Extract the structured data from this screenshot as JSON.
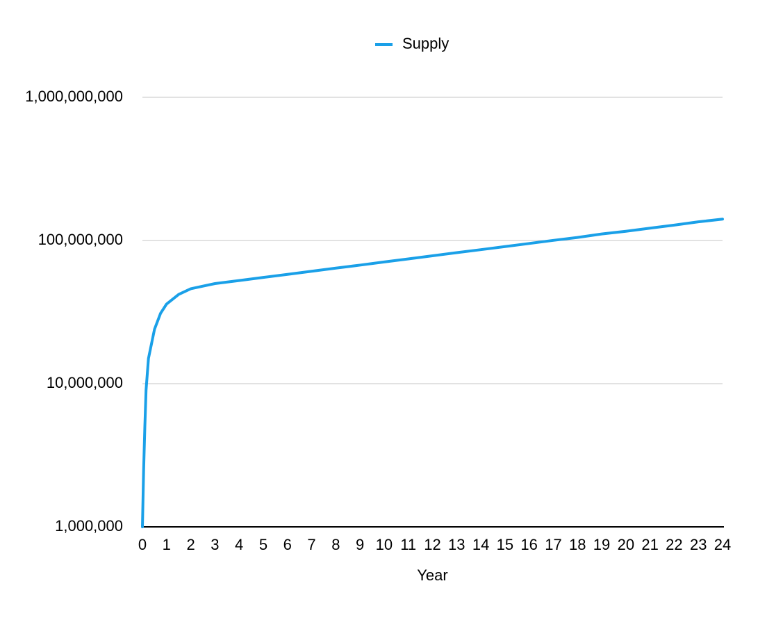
{
  "chart_data": {
    "type": "line",
    "x_label": "Year",
    "log_y": true,
    "grid": true,
    "legend": "top",
    "x": [
      0,
      0.05,
      0.1,
      0.15,
      0.25,
      0.5,
      0.75,
      1,
      1.5,
      2,
      2.5,
      3,
      4,
      5,
      6,
      7,
      8,
      9,
      10,
      11,
      12,
      13,
      14,
      15,
      16,
      17,
      18,
      19,
      20,
      21,
      22,
      23,
      24
    ],
    "series": [
      {
        "name": "Supply",
        "color": "#1aa0e8",
        "values": [
          1000000,
          2500000,
          5000000,
          9000000,
          15000000,
          24000000,
          31000000,
          36000000,
          42000000,
          46000000,
          48000000,
          50000000,
          52500000,
          55200000,
          58000000,
          61000000,
          64100000,
          67300000,
          70800000,
          74400000,
          78200000,
          82200000,
          86300000,
          90700000,
          95300000,
          100200000,
          105000000,
          111000000,
          116000000,
          122000000,
          128000000,
          135000000,
          141000000
        ]
      }
    ],
    "xlim": [
      0,
      24
    ],
    "xticks": [
      0,
      1,
      2,
      3,
      4,
      5,
      6,
      7,
      8,
      9,
      10,
      11,
      12,
      13,
      14,
      15,
      16,
      17,
      18,
      19,
      20,
      21,
      22,
      23,
      24
    ],
    "ylim": [
      1000000,
      1000000000
    ],
    "yticks": [
      {
        "value": 1000000,
        "label": "1,000,000"
      },
      {
        "value": 10000000,
        "label": "10,000,000"
      },
      {
        "value": 100000000,
        "label": "100,000,000"
      },
      {
        "value": 1000000000,
        "label": "1,000,000,000"
      }
    ]
  }
}
